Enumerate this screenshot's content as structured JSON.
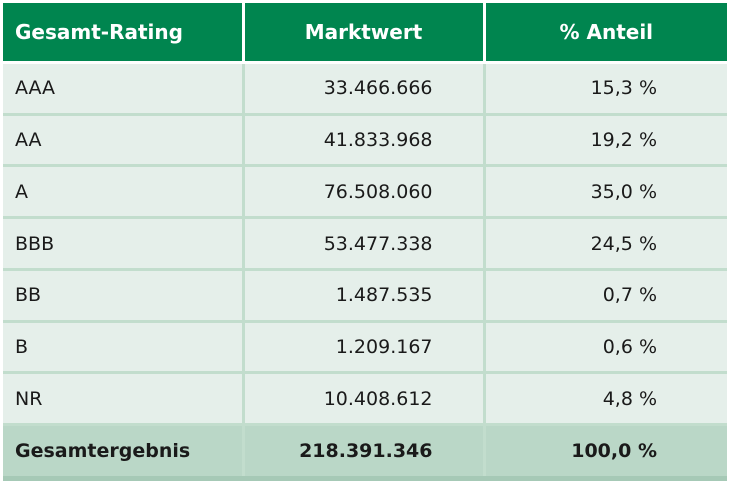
{
  "table": {
    "headers": {
      "rating": "Gesamt-Rating",
      "market_value": "Marktwert",
      "share": "% Anteil"
    },
    "rows": [
      {
        "rating": "AAA",
        "market_value": "33.466.666",
        "share": "15,3 %"
      },
      {
        "rating": "AA",
        "market_value": "41.833.968",
        "share": "19,2 %"
      },
      {
        "rating": "A",
        "market_value": "76.508.060",
        "share": "35,0 %"
      },
      {
        "rating": "BBB",
        "market_value": "53.477.338",
        "share": "24,5 %"
      },
      {
        "rating": "BB",
        "market_value": "1.487.535",
        "share": "0,7 %"
      },
      {
        "rating": "B",
        "market_value": "1.209.167",
        "share": "0,6 %"
      },
      {
        "rating": "NR",
        "market_value": "10.408.612",
        "share": "4,8 %"
      }
    ],
    "total": {
      "rating": "Gesamtergebnis",
      "market_value": "218.391.346",
      "share": "100,0 %"
    }
  },
  "colors": {
    "header_bg": "#00854f",
    "row_bg": "#e5efea",
    "total_bg": "#bad7c7",
    "divider": "#c2ddcd"
  }
}
